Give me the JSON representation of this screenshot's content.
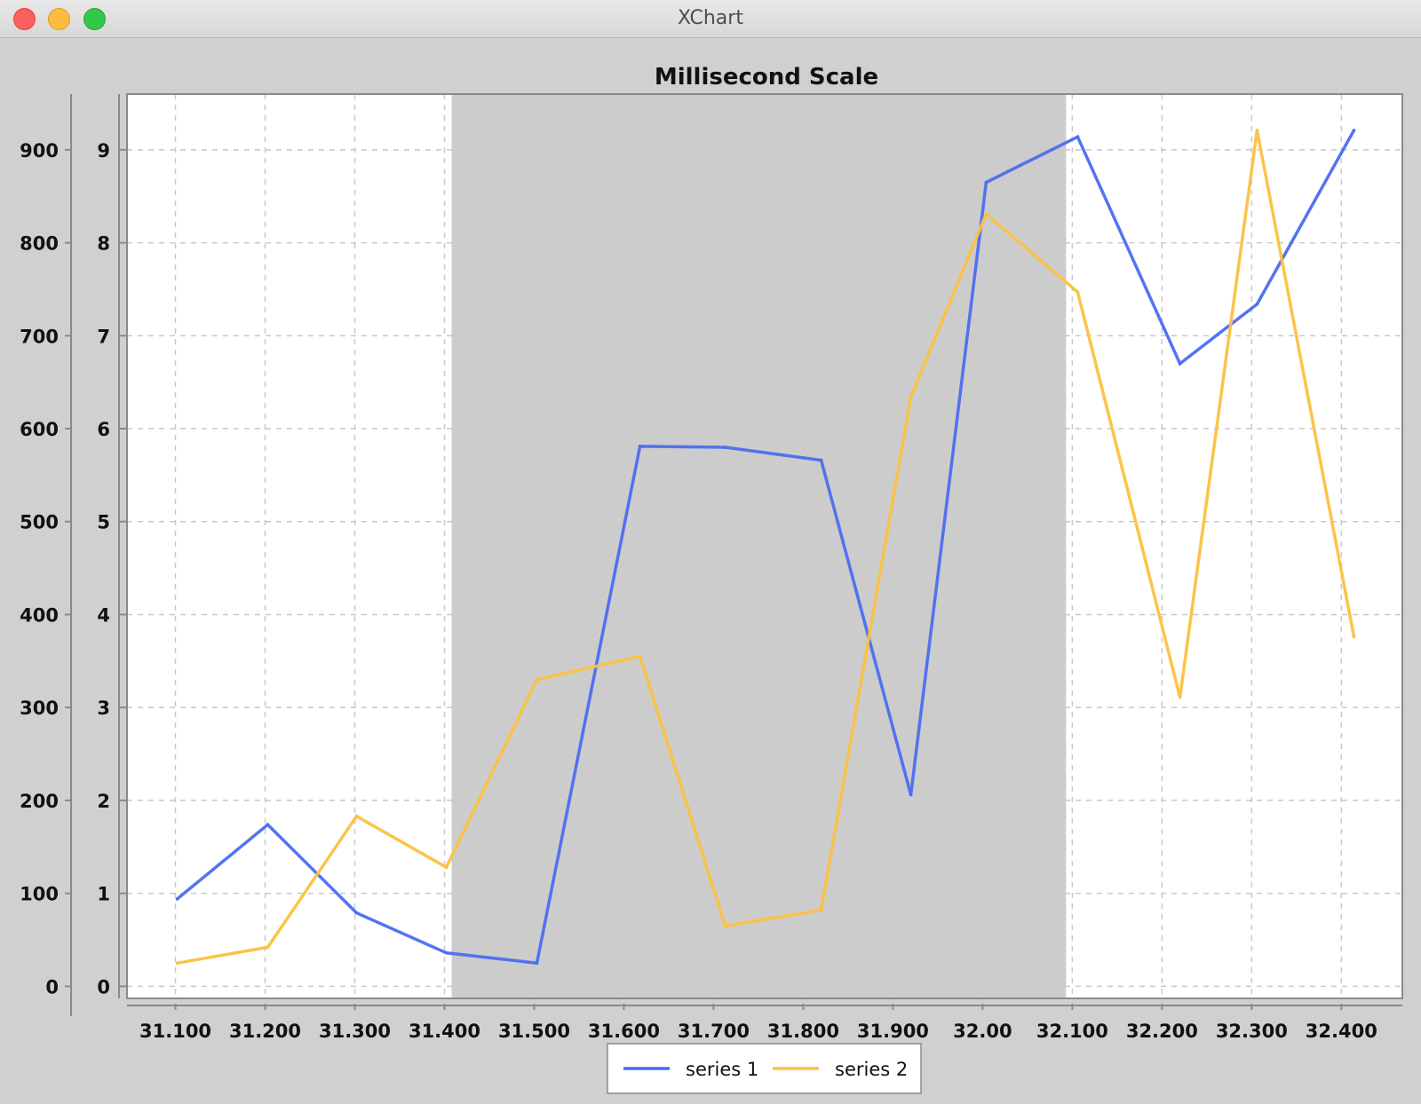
{
  "window": {
    "title": "XChart"
  },
  "chart_data": {
    "type": "line",
    "title": "Millisecond Scale",
    "xlabel": "",
    "ylabel": "",
    "x_tick_labels": [
      "31.100",
      "31.200",
      "31.300",
      "31.400",
      "31.500",
      "31.600",
      "31.700",
      "31.800",
      "31.900",
      "32.00",
      "32.100",
      "32.200",
      "32.300",
      "32.400"
    ],
    "y_ticks_outer": [
      "0",
      "100",
      "200",
      "300",
      "400",
      "500",
      "600",
      "700",
      "800",
      "900"
    ],
    "y_ticks_inner": [
      "0",
      "1",
      "2",
      "3",
      "4",
      "5",
      "6",
      "7",
      "8",
      "9"
    ],
    "xlim": [
      31.046,
      32.468
    ],
    "ylim": [
      -13,
      960
    ],
    "grid": true,
    "shaded_region": {
      "x_start": 31.408,
      "x_end": 32.093,
      "color": "#cccccc"
    },
    "legend_position": "bottom-center",
    "series": [
      {
        "name": "series 1",
        "color": "#4a6df0",
        "x": [
          31.102,
          31.203,
          31.302,
          31.402,
          31.503,
          31.618,
          31.713,
          31.82,
          31.92,
          32.004,
          32.106,
          32.22,
          32.306,
          32.414
        ],
        "y": [
          94,
          174,
          79,
          36,
          25,
          581,
          580,
          566,
          206,
          865,
          914,
          670,
          734,
          921
        ]
      },
      {
        "name": "series 2",
        "color": "#fbc140",
        "x": [
          31.102,
          31.203,
          31.302,
          31.402,
          31.503,
          31.618,
          31.713,
          31.82,
          31.92,
          32.004,
          32.106,
          32.22,
          32.306,
          32.414
        ],
        "y": [
          25,
          42,
          183,
          128,
          330,
          355,
          65,
          82,
          634,
          831,
          747,
          311,
          921,
          376
        ]
      }
    ]
  }
}
